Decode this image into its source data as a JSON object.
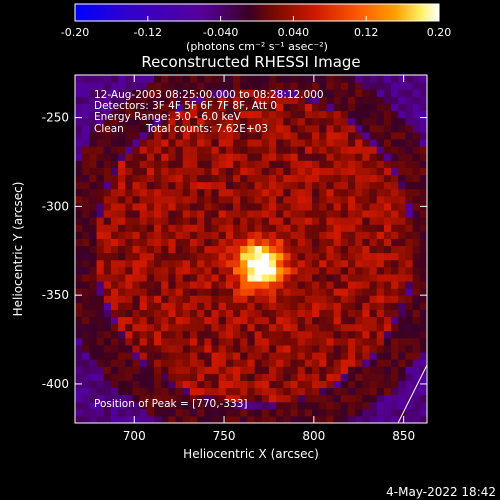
{
  "chart_data": {
    "type": "heatmap",
    "title": "Reconstructed RHESSI Image",
    "xlabel": "Heliocentric X (arcsec)",
    "ylabel": "Heliocentric Y (arcsec)",
    "xlim": [
      667,
      863
    ],
    "ylim": [
      -422,
      -226
    ],
    "x_ticks": [
      700,
      750,
      800,
      850
    ],
    "y_ticks": [
      -250,
      -300,
      -350,
      -400
    ],
    "colorbar": {
      "ticks": [
        "-0.20",
        "-0.12",
        "-0.040",
        "0.040",
        "0.12",
        "0.20"
      ],
      "range": [
        -0.2,
        0.2
      ],
      "unit_label": "(photons cm⁻² s⁻¹ asec⁻²)",
      "colors": [
        "#0000ff",
        "#3300cc",
        "#550099",
        "#3a0022",
        "#7a0a00",
        "#d01800",
        "#ff5a00",
        "#ffa000",
        "#fff060",
        "#ffffff"
      ]
    },
    "annotations": {
      "time_range": "12-Aug-2003 08:25:00.000 to 08:28:12.000",
      "detectors": "Detectors: 3F 4F 5F 6F 7F 8F, Att 0",
      "energy_range": "Energy Range: 3.0 - 6.0 keV",
      "clean_label": "Clean",
      "total_counts": "Total counts: 7.62E+03",
      "peak_position": "Position of Peak = [770,-333]"
    },
    "peak": {
      "x": 770,
      "y": -333,
      "value": 0.2
    },
    "regions": [
      {
        "kind": "disk",
        "cx": 767,
        "cy": -323,
        "r": 88,
        "value": 0.05
      },
      {
        "kind": "ring",
        "cx": 767,
        "cy": -323,
        "r": 100,
        "value": 0.04
      },
      {
        "kind": "blob",
        "cx": 770,
        "cy": -333,
        "r": 9,
        "value": 0.18
      }
    ]
  },
  "footer": {
    "date": "4-May-2022 18:42"
  }
}
